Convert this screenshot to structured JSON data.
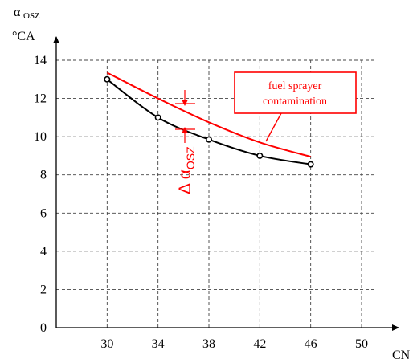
{
  "chart_data": {
    "type": "line",
    "ylabel_symbol": "α",
    "ylabel_subscript": "OSZ",
    "ylabel_unit": "°CA",
    "xlabel": "CN",
    "x_ticks": [
      "30",
      "34",
      "38",
      "42",
      "46",
      "50"
    ],
    "y_ticks": [
      "0",
      "2",
      "4",
      "6",
      "8",
      "10",
      "12",
      "14"
    ],
    "xlim": [
      26,
      52
    ],
    "ylim": [
      0,
      14
    ],
    "grid": true,
    "series": [
      {
        "points": [
          [
            30,
            13.0
          ],
          [
            34,
            11.0
          ],
          [
            38,
            9.85
          ],
          [
            42,
            9.0
          ],
          [
            46,
            8.55
          ]
        ],
        "color": "#000000",
        "markers": true
      },
      {
        "points": [
          [
            30,
            13.35
          ],
          [
            34,
            12.0
          ],
          [
            38,
            10.75
          ],
          [
            42,
            9.7
          ],
          [
            46,
            8.95
          ]
        ],
        "color": "#ff0000",
        "markers": false
      }
    ],
    "annotations": {
      "box_text_line1": "fuel sprayer",
      "box_text_line2": "contamination",
      "delta_symbol": "Δ α",
      "delta_subscript": "OSZ"
    }
  }
}
